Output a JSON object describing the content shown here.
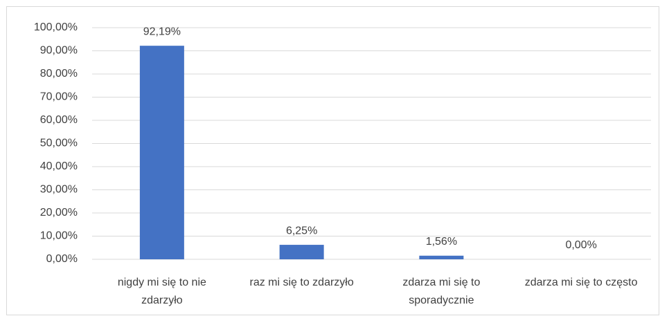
{
  "chart_data": {
    "type": "bar",
    "categories": [
      "nigdy mi się to nie zdarzyło",
      "raz mi się to zdarzyło",
      "zdarza mi się to sporadycznie",
      "zdarza mi się to często"
    ],
    "values": [
      92.19,
      6.25,
      1.56,
      0
    ],
    "value_labels": [
      "92,19%",
      "6,25%",
      "1,56%",
      "0,00%"
    ],
    "color": "#4472c4",
    "ylim": [
      0,
      100
    ],
    "yticks": [
      {
        "value": 0,
        "label": "0,00%"
      },
      {
        "value": 10,
        "label": "10,00%"
      },
      {
        "value": 20,
        "label": "20,00%"
      },
      {
        "value": 30,
        "label": "30,00%"
      },
      {
        "value": 40,
        "label": "40,00%"
      },
      {
        "value": 50,
        "label": "50,00%"
      },
      {
        "value": 60,
        "label": "60,00%"
      },
      {
        "value": 70,
        "label": "70,00%"
      },
      {
        "value": 80,
        "label": "80,00%"
      },
      {
        "value": 90,
        "label": "90,00%"
      },
      {
        "value": 100,
        "label": "100,00%"
      }
    ],
    "grid": true
  }
}
